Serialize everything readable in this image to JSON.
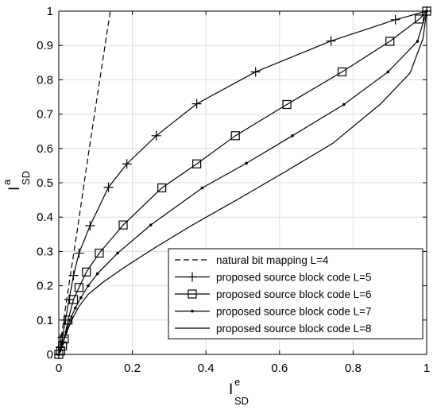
{
  "chart_data": {
    "type": "line",
    "xlabel": {
      "main": "I",
      "sup": "e",
      "sub": "SD"
    },
    "ylabel": {
      "main": "I",
      "sup": "a",
      "sub": "SD"
    },
    "xlim": [
      0,
      1
    ],
    "ylim": [
      0,
      1
    ],
    "xticks": [
      0,
      0.2,
      0.4,
      0.6,
      0.8,
      1
    ],
    "yticks": [
      0,
      0.1,
      0.2,
      0.3,
      0.4,
      0.5,
      0.6,
      0.7,
      0.8,
      0.9,
      1
    ],
    "xtick_labels": [
      "0",
      "0.2",
      "0.4",
      "0.6",
      "0.8",
      "1"
    ],
    "ytick_labels": [
      "0",
      "0.1",
      "0.2",
      "0.3",
      "0.4",
      "0.5",
      "0.6",
      "0.7",
      "0.8",
      "0.9",
      "1"
    ],
    "grid": true,
    "legend_position": "bottom-right",
    "series": [
      {
        "name": "natural bit mapping  L=4",
        "style": "dashed",
        "marker": "none",
        "color": "#000000",
        "x": [
          0,
          0.02,
          0.05,
          0.08,
          0.11,
          0.14
        ],
        "y": [
          0,
          0.15,
          0.36,
          0.58,
          0.79,
          1.0
        ]
      },
      {
        "name": "proposed source block code  L=5",
        "style": "solid",
        "marker": "plus",
        "color": "#000000",
        "x": [
          0,
          0.005,
          0.01,
          0.018,
          0.028,
          0.04,
          0.055,
          0.085,
          0.135,
          0.185,
          0.265,
          0.375,
          0.535,
          0.74,
          0.915,
          1.0
        ],
        "y": [
          0,
          0.02,
          0.05,
          0.1,
          0.16,
          0.23,
          0.295,
          0.375,
          0.487,
          0.555,
          0.637,
          0.73,
          0.823,
          0.913,
          0.975,
          1.0
        ]
      },
      {
        "name": "proposed source block code  L=6",
        "style": "solid",
        "marker": "square",
        "color": "#000000",
        "x": [
          0,
          0.005,
          0.01,
          0.015,
          0.025,
          0.04,
          0.055,
          0.075,
          0.11,
          0.175,
          0.28,
          0.375,
          0.48,
          0.62,
          0.77,
          0.9,
          0.98,
          1.0
        ],
        "y": [
          0,
          0.01,
          0.025,
          0.045,
          0.1,
          0.16,
          0.195,
          0.24,
          0.295,
          0.377,
          0.485,
          0.555,
          0.637,
          0.728,
          0.823,
          0.912,
          0.977,
          1.0
        ]
      },
      {
        "name": "proposed source block code  L=7",
        "style": "solid",
        "marker": "dot",
        "color": "#000000",
        "x": [
          0,
          0.005,
          0.01,
          0.02,
          0.03,
          0.045,
          0.06,
          0.08,
          0.105,
          0.16,
          0.25,
          0.39,
          0.51,
          0.635,
          0.775,
          0.895,
          0.975,
          1.0
        ],
        "y": [
          0,
          0.015,
          0.03,
          0.065,
          0.1,
          0.135,
          0.165,
          0.2,
          0.235,
          0.295,
          0.377,
          0.485,
          0.557,
          0.637,
          0.728,
          0.823,
          0.912,
          1.0
        ]
      },
      {
        "name": "proposed source block code  L=8",
        "style": "solid",
        "marker": "none",
        "color": "#000000",
        "x": [
          0,
          0.005,
          0.01,
          0.02,
          0.035,
          0.055,
          0.08,
          0.12,
          0.18,
          0.26,
          0.36,
          0.5,
          0.62,
          0.745,
          0.875,
          0.955,
          0.99,
          1.0
        ],
        "y": [
          0,
          0.01,
          0.03,
          0.06,
          0.1,
          0.14,
          0.175,
          0.21,
          0.255,
          0.31,
          0.375,
          0.46,
          0.535,
          0.615,
          0.73,
          0.82,
          0.92,
          1.0
        ]
      }
    ]
  }
}
